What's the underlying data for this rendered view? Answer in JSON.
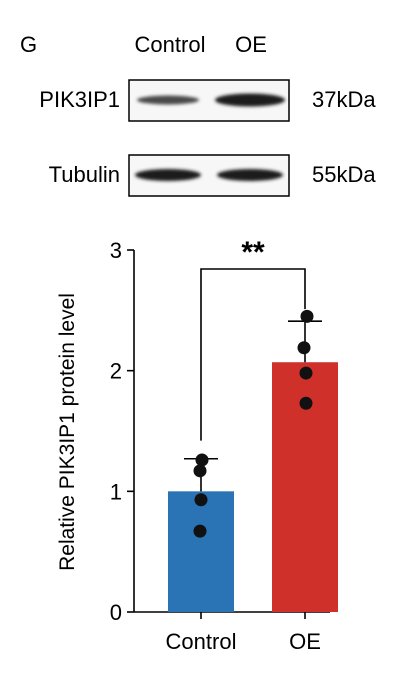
{
  "panel_label": "G",
  "blot": {
    "lanes": [
      "Control",
      "OE"
    ],
    "rows": [
      {
        "protein": "PIK3IP1",
        "size": "37kDa"
      },
      {
        "protein": "Tubulin",
        "size": "55kDa"
      }
    ]
  },
  "chart_data": {
    "type": "bar",
    "categories": [
      "Control",
      "OE"
    ],
    "values": [
      1.0,
      2.07
    ],
    "errors": [
      0.27,
      0.34
    ],
    "points": [
      [
        1.26,
        1.17,
        0.93,
        0.67
      ],
      [
        2.45,
        2.19,
        1.98,
        1.73
      ]
    ],
    "colors": [
      "#2a73b5",
      "#d0302a"
    ],
    "ylabel": "Relative PIK3IP1 protein level",
    "xlabel": "",
    "ylim": [
      0,
      3
    ],
    "yticks": [
      0,
      1,
      2,
      3
    ],
    "significance": "**",
    "grid": false,
    "legend": "none"
  }
}
